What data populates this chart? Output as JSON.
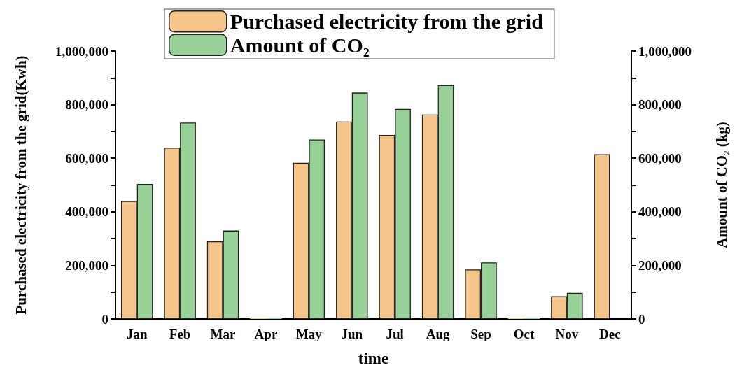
{
  "chart_data": {
    "type": "bar",
    "xlabel": "time",
    "ylabel": "Purchased electricity from the grid(Kwh)",
    "y2label": "Amount of CO₂ (kg)",
    "categories": [
      "Jan",
      "Feb",
      "Mar",
      "Apr",
      "May",
      "Jun",
      "Jul",
      "Aug",
      "Sep",
      "Oct",
      "Nov",
      "Dec"
    ],
    "series": [
      {
        "name": "Purchased electricity from the grid",
        "color": "#f5c48b",
        "values": [
          440000,
          639000,
          290000,
          3000,
          583000,
          737000,
          687000,
          763000,
          185000,
          3000,
          85000,
          615000
        ]
      },
      {
        "name": "Amount of CO₂",
        "color": "#98d198",
        "axis": "y2",
        "values": [
          504000,
          733000,
          330000,
          3000,
          670000,
          845000,
          784000,
          873000,
          211000,
          3000,
          97000,
          null
        ]
      }
    ],
    "ylim": [
      0,
      1000000
    ],
    "yticks": [
      {
        "value": 0,
        "label": "0"
      },
      {
        "value": 100000,
        "label": null
      },
      {
        "value": 200000,
        "label": "200,000"
      },
      {
        "value": 300000,
        "label": null
      },
      {
        "value": 400000,
        "label": "400,000"
      },
      {
        "value": 500000,
        "label": null
      },
      {
        "value": 600000,
        "label": "600,000"
      },
      {
        "value": 700000,
        "label": null
      },
      {
        "value": 800000,
        "label": "800,000"
      },
      {
        "value": 900000,
        "label": null
      },
      {
        "value": 1000000,
        "label": "1,000,000"
      }
    ],
    "y2lim": [
      0,
      1000000
    ],
    "y2ticks": [
      {
        "value": 0,
        "label": "0"
      },
      {
        "value": 100000,
        "label": null
      },
      {
        "value": 200000,
        "label": "200,000"
      },
      {
        "value": 300000,
        "label": null
      },
      {
        "value": 400000,
        "label": "400,000"
      },
      {
        "value": 500000,
        "label": null
      },
      {
        "value": 600000,
        "label": "600,000"
      },
      {
        "value": 700000,
        "label": null
      },
      {
        "value": 800000,
        "label": "800,000"
      },
      {
        "value": 900000,
        "label": null
      },
      {
        "value": 1000000,
        "label": "1,000,000"
      }
    ],
    "grid": false,
    "legend": "top"
  }
}
